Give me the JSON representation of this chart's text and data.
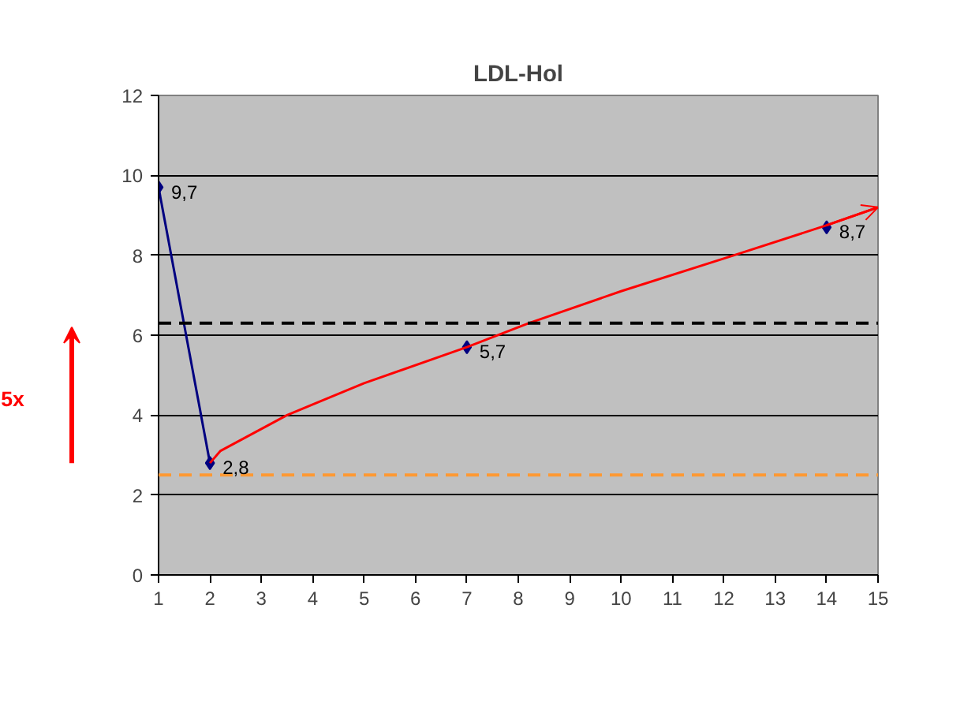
{
  "chart_data": {
    "type": "line",
    "title": "LDL-Hol",
    "xlim": [
      1,
      15
    ],
    "xticks": [
      1,
      2,
      3,
      4,
      5,
      6,
      7,
      8,
      9,
      10,
      11,
      12,
      13,
      14,
      15
    ],
    "ylim": [
      0,
      12
    ],
    "yticks": [
      0,
      2,
      4,
      6,
      8,
      10,
      12
    ],
    "grid": "y",
    "series": [
      {
        "color": "#000080",
        "marker": "diamond",
        "x": [
          1,
          2
        ],
        "values": [
          9.7,
          2.8
        ],
        "value_labels": [
          "9,7",
          "2,8"
        ]
      },
      {
        "type": "scatter",
        "color": "#000080",
        "marker": "diamond",
        "x": [
          7,
          14
        ],
        "values": [
          5.7,
          8.7
        ],
        "value_labels": [
          "5,7",
          "8,7"
        ]
      },
      {
        "type": "line",
        "color": "#ff0000",
        "marker": "none",
        "x": [
          2,
          2.2,
          3.5,
          5,
          7,
          8.2,
          10,
          12.2,
          14,
          15
        ],
        "values": [
          2.8,
          3.1,
          4.0,
          4.8,
          5.7,
          6.3,
          7.1,
          8.0,
          8.75,
          9.2
        ]
      }
    ],
    "ref_lines": [
      {
        "axis": "y",
        "value": 6.3,
        "color": "#000000",
        "line_style": "dashed"
      },
      {
        "axis": "y",
        "value": 2.5,
        "color": "#ff9933",
        "line_style": "dashed"
      }
    ],
    "annotations": [
      "5x"
    ]
  }
}
